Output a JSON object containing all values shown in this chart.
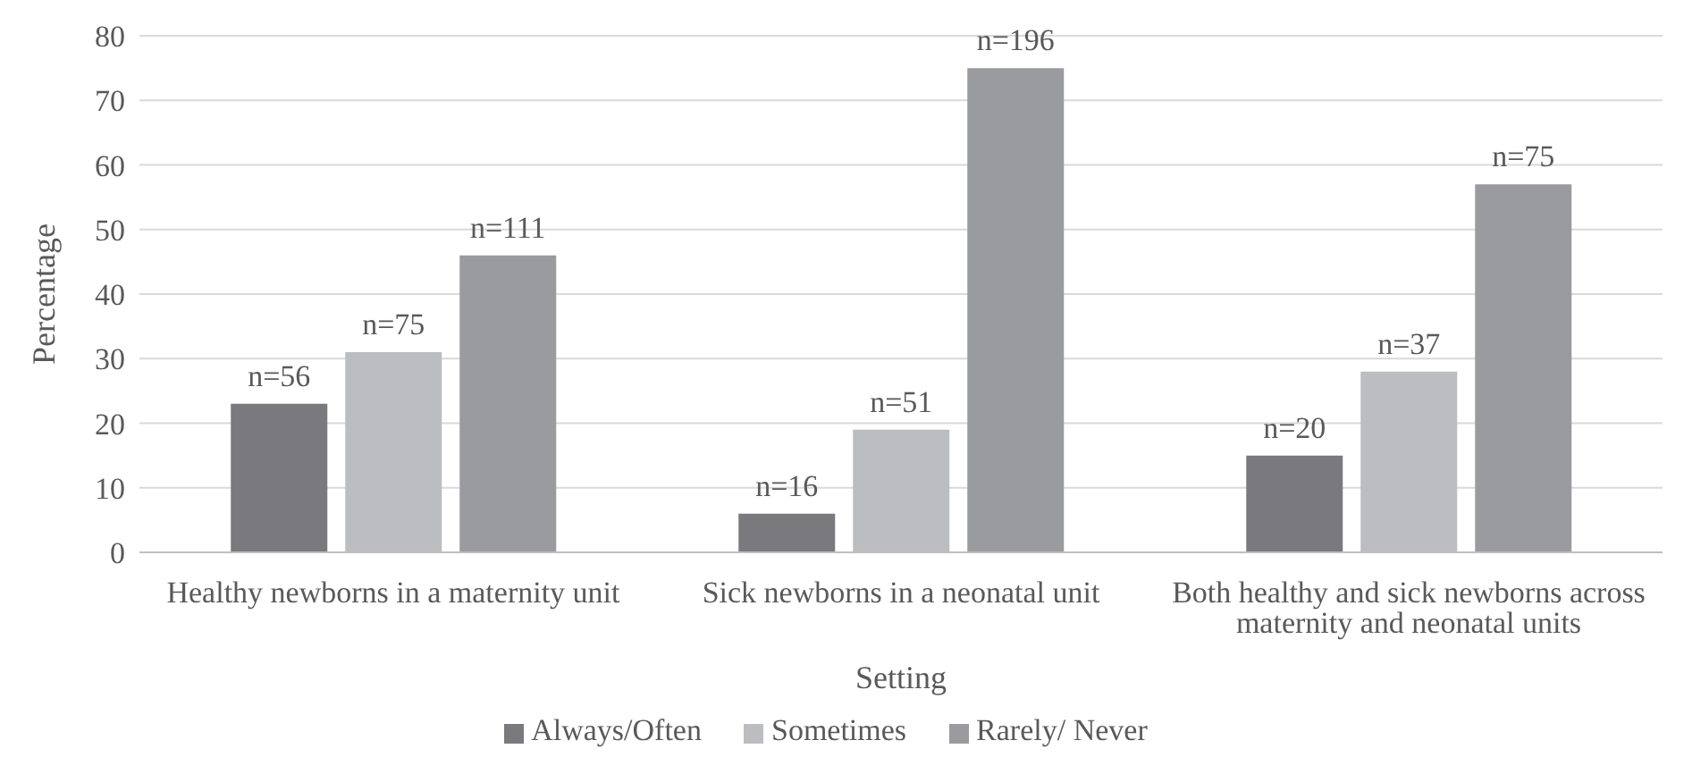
{
  "chart_data": {
    "type": "bar",
    "xlabel": "Setting",
    "ylabel": "Percentage",
    "categories": [
      "Healthy newborns in a maternity unit",
      "Sick newborns in a neonatal unit",
      "Both healthy and sick newborns across maternity and neonatal units"
    ],
    "series": [
      {
        "name": "Always/Often",
        "color": "#7a7a7e",
        "values": [
          23,
          6,
          15
        ]
      },
      {
        "name": "Sometimes",
        "color": "#bcbdc0",
        "values": [
          31,
          19,
          28
        ]
      },
      {
        "name": "Rarely/ Never",
        "color": "#9a9b9e",
        "values": [
          46,
          75,
          57
        ]
      }
    ],
    "annotations": [
      "n=56",
      "n=75",
      "n=111",
      "n=16",
      "n=51",
      "n=196",
      "n=20",
      "n=37",
      "n=75"
    ],
    "ylim": [
      0,
      80
    ],
    "yticks": [
      0,
      10,
      20,
      30,
      40,
      50,
      60,
      70,
      80
    ],
    "grid": "y",
    "legend": "bottom"
  }
}
